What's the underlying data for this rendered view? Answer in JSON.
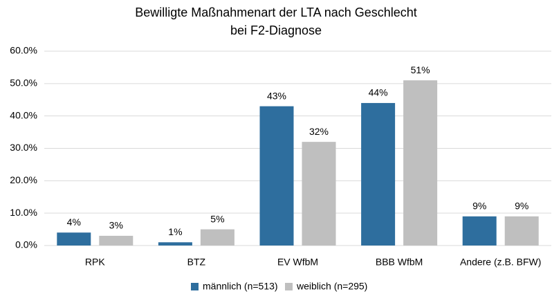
{
  "chart_data": {
    "type": "bar",
    "title": [
      "Bewilligte Maßnahmenart der LTA nach Geschlecht",
      "bei F2-Diagnose"
    ],
    "categories": [
      "RPK",
      "BTZ",
      "EV WfbM",
      "BBB WfbM",
      "Andere (z.B. BFW)"
    ],
    "series": [
      {
        "name": "männlich (n=513)",
        "color": "#2e6e9e",
        "values": [
          4,
          1,
          43,
          44,
          9
        ],
        "value_labels": [
          "4%",
          "1%",
          "43%",
          "44%",
          "9%"
        ]
      },
      {
        "name": "weiblich (n=295)",
        "color": "#bfbfbf",
        "values": [
          3,
          5,
          32,
          51,
          9
        ],
        "value_labels": [
          "3%",
          "5%",
          "32%",
          "51%",
          "9%"
        ]
      }
    ],
    "ylim": [
      0,
      60
    ],
    "yticks": [
      {
        "value": 0,
        "label": "0.0%"
      },
      {
        "value": 10,
        "label": "10.0%"
      },
      {
        "value": 20,
        "label": "20.0%"
      },
      {
        "value": 30,
        "label": "30.0%"
      },
      {
        "value": 40,
        "label": "40.0%"
      },
      {
        "value": 50,
        "label": "50.0%"
      },
      {
        "value": 60,
        "label": "60.0%"
      }
    ],
    "grid": true,
    "legend": "bottom"
  }
}
